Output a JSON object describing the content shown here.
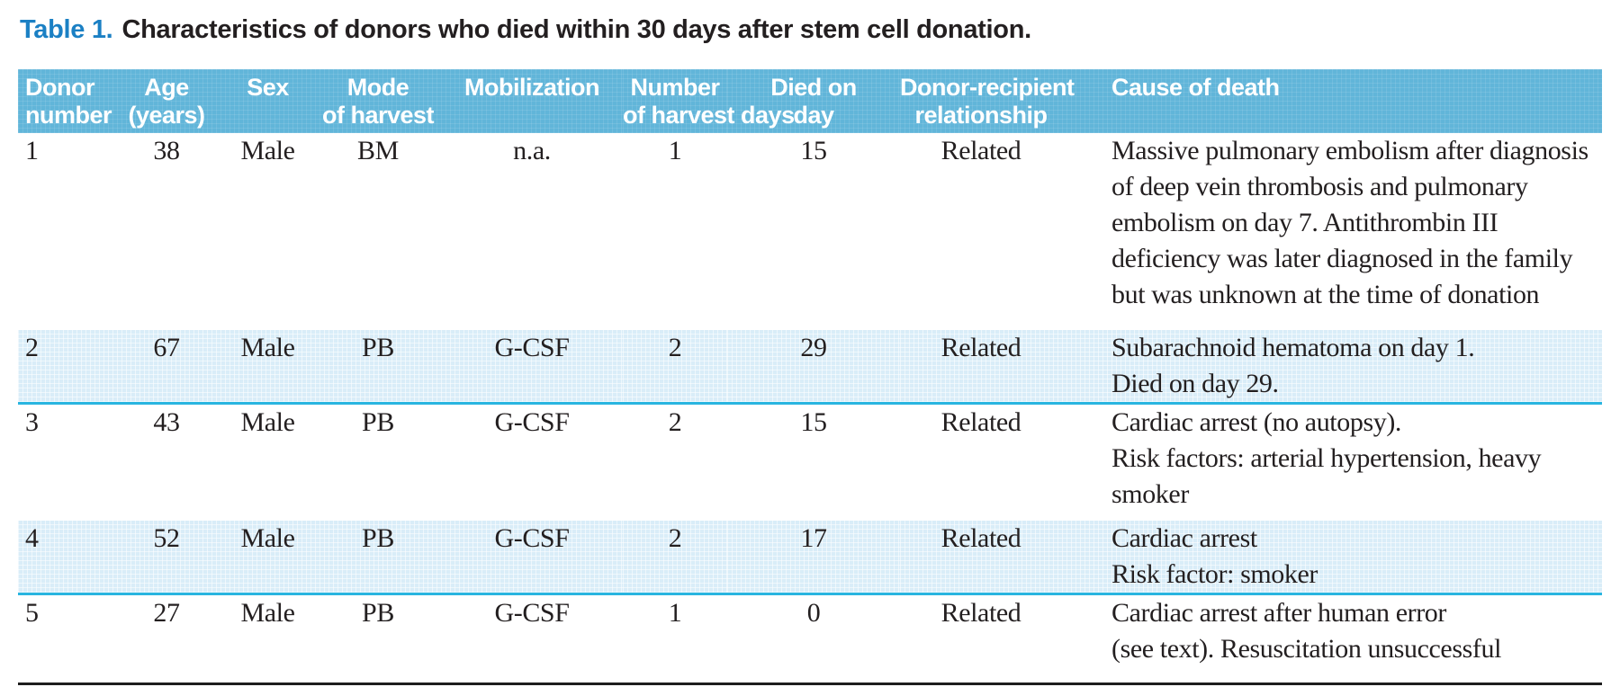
{
  "title": {
    "label": "Table 1.",
    "text": "Characteristics of donors who died within 30 days after stem cell donation."
  },
  "colors": {
    "title_accent": "#1b80c4",
    "header_bg": "#61b5d9",
    "header_text": "#ffffff",
    "alt_row_bg": "#d9edf8",
    "separator": "#29b5e0",
    "body_text": "#231f20",
    "bottom_rule": "#1d1d1d"
  },
  "table": {
    "columns": [
      {
        "id": "donor_number",
        "line1": "Donor",
        "line2": "number"
      },
      {
        "id": "age",
        "line1": "Age",
        "line2": "(years)"
      },
      {
        "id": "sex",
        "line1": "Sex",
        "line2": ""
      },
      {
        "id": "mode_of_harvest",
        "line1": "Mode",
        "line2": "of harvest"
      },
      {
        "id": "mobilization",
        "line1": "Mobilization",
        "line2": ""
      },
      {
        "id": "harvest_days",
        "line1": "Number",
        "line2": "of harvest days"
      },
      {
        "id": "died_on_day",
        "line1": "Died on",
        "line2": "day"
      },
      {
        "id": "relationship",
        "line1": "Donor-recipient",
        "line2": "relationship"
      },
      {
        "id": "cause_of_death",
        "line1": "Cause of death",
        "line2": ""
      }
    ],
    "rows": [
      {
        "donor_number": "1",
        "age": "38",
        "sex": "Male",
        "mode_of_harvest": "BM",
        "mobilization": "n.a.",
        "harvest_days": "1",
        "died_on_day": "15",
        "relationship": "Related",
        "cause_of_death": [
          "Massive pulmonary embolism after diagnosis",
          "of deep vein thrombosis and pulmonary",
          "embolism on day 7. Antithrombin III",
          "deficiency was later diagnosed in the family",
          "but was unknown at the time of donation"
        ]
      },
      {
        "donor_number": "2",
        "age": "67",
        "sex": "Male",
        "mode_of_harvest": "PB",
        "mobilization": "G-CSF",
        "harvest_days": "2",
        "died_on_day": "29",
        "relationship": "Related",
        "cause_of_death": [
          "Subarachnoid hematoma on day 1.",
          "Died on day 29."
        ]
      },
      {
        "donor_number": "3",
        "age": "43",
        "sex": "Male",
        "mode_of_harvest": "PB",
        "mobilization": "G-CSF",
        "harvest_days": "2",
        "died_on_day": "15",
        "relationship": "Related",
        "cause_of_death": [
          "Cardiac arrest (no autopsy).",
          "Risk factors: arterial hypertension, heavy",
          "smoker"
        ]
      },
      {
        "donor_number": "4",
        "age": "52",
        "sex": "Male",
        "mode_of_harvest": "PB",
        "mobilization": "G-CSF",
        "harvest_days": "2",
        "died_on_day": "17",
        "relationship": "Related",
        "cause_of_death": [
          "Cardiac arrest",
          "Risk factor: smoker"
        ]
      },
      {
        "donor_number": "5",
        "age": "27",
        "sex": "Male",
        "mode_of_harvest": "PB",
        "mobilization": "G-CSF",
        "harvest_days": "1",
        "died_on_day": "0",
        "relationship": "Related",
        "cause_of_death": [
          "Cardiac arrest after human error",
          "(see text). Resuscitation unsuccessful"
        ]
      }
    ]
  }
}
